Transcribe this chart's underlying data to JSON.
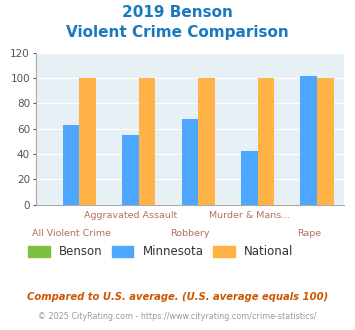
{
  "title_line1": "2019 Benson",
  "title_line2": "Violent Crime Comparison",
  "title_color": "#1a7abf",
  "benson_color": "#7dc142",
  "minnesota_color": "#4da6ff",
  "national_color": "#ffb347",
  "plot_bg_color": "#e6f0f5",
  "mn_vals": [
    63,
    55,
    68,
    42,
    102
  ],
  "nat_vals": [
    100,
    100,
    100,
    100,
    100
  ],
  "benson_vals": [
    0,
    0,
    0,
    0,
    0
  ],
  "ylim": [
    0,
    120
  ],
  "yticks": [
    0,
    20,
    40,
    60,
    80,
    100,
    120
  ],
  "labels_upper": [
    "",
    "Aggravated Assault",
    "",
    "Murder & Mans...",
    ""
  ],
  "labels_lower": [
    "All Violent Crime",
    "",
    "Robbery",
    "",
    "Rape"
  ],
  "label_color": "#b07060",
  "footnote1": "Compared to U.S. average. (U.S. average equals 100)",
  "footnote2": "© 2025 CityRating.com - https://www.cityrating.com/crime-statistics/",
  "footnote1_color": "#cc5500",
  "footnote2_color": "#999999",
  "url_color": "#4488cc",
  "legend_labels": [
    "Benson",
    "Minnesota",
    "National"
  ],
  "legend_text_color": "#333333"
}
